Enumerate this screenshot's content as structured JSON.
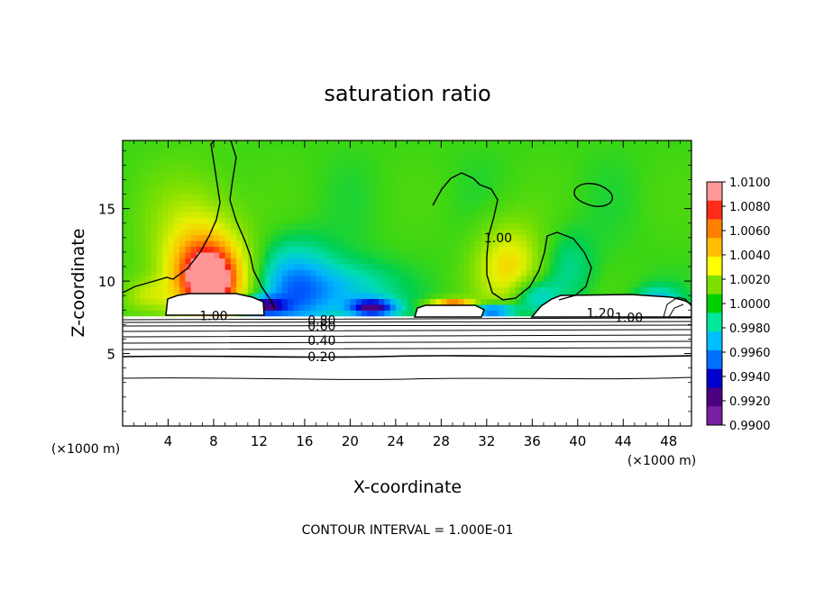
{
  "chart_data": {
    "type": "heatmap",
    "title": "saturation ratio",
    "xlabel": "X-coordinate",
    "ylabel": "Z-coordinate",
    "x_unit": "(×1000 m)",
    "z_unit": "(×1000 m)",
    "x_ticks": [
      4,
      8,
      12,
      16,
      20,
      24,
      28,
      32,
      36,
      40,
      44,
      48
    ],
    "x_tick_labels": [
      "4",
      "8",
      "12",
      "16",
      "20",
      "24",
      "28",
      "32",
      "36",
      "40",
      "44",
      "48"
    ],
    "y_ticks": [
      5,
      10,
      15
    ],
    "y_tick_labels": [
      "5",
      "10",
      "15"
    ],
    "xlim": [
      0,
      50
    ],
    "ylim": [
      0,
      19.7
    ],
    "footer": "CONTOUR INTERVAL = 1.000E-01",
    "colorbar": {
      "levels": [
        "1.0100",
        "1.0080",
        "1.0060",
        "1.0040",
        "1.0020",
        "1.0000",
        "0.9980",
        "0.9960",
        "0.9940",
        "0.9920",
        "0.9900"
      ],
      "colors": [
        "#ff9999",
        "#ff2a1a",
        "#ff7f00",
        "#ffbf00",
        "#ffff00",
        "#7fe000",
        "#00d000",
        "#00e89a",
        "#00bfff",
        "#0070ff",
        "#0000cc",
        "#4b0082",
        "#7a1fa2"
      ]
    },
    "contour_labels": [
      {
        "text": "1.00",
        "x": 8.0,
        "z": 7.6
      },
      {
        "text": "1.00",
        "x": 33.0,
        "z": 13.0
      },
      {
        "text": "1.20",
        "x": 42.0,
        "z": 7.8
      },
      {
        "text": "1.00",
        "x": 44.5,
        "z": 7.5
      },
      {
        "text": "0.80",
        "x": 17.5,
        "z": 7.3
      },
      {
        "text": "0.60",
        "x": 17.5,
        "z": 6.9
      },
      {
        "text": "0.40",
        "x": 17.5,
        "z": 5.9
      },
      {
        "text": "0.20",
        "x": 17.5,
        "z": 4.8
      }
    ],
    "blobs": [
      {
        "cx": 7.8,
        "cz": 10.0,
        "rx": 3.3,
        "rz": 2.8,
        "level": 0.98
      },
      {
        "cx": 6.5,
        "cz": 12.5,
        "rx": 4.0,
        "rz": 4.5,
        "level": 0.45
      },
      {
        "cx": 34.0,
        "cz": 11.0,
        "rx": 3.0,
        "rz": 3.0,
        "level": 0.55
      },
      {
        "cx": 12.0,
        "cz": 8.3,
        "rx": 2.0,
        "rz": 0.6,
        "level": -0.98
      },
      {
        "cx": 15.0,
        "cz": 9.5,
        "rx": 3.5,
        "rz": 3.0,
        "level": -0.55
      },
      {
        "cx": 22.0,
        "cz": 8.2,
        "rx": 2.0,
        "rz": 0.6,
        "level": -0.9
      },
      {
        "cx": 20.0,
        "cz": 9.3,
        "rx": 4.0,
        "rz": 2.0,
        "level": -0.35
      },
      {
        "cx": 32.5,
        "cz": 8.0,
        "rx": 2.0,
        "rz": 0.5,
        "level": -0.85
      },
      {
        "cx": 36.0,
        "cz": 9.0,
        "rx": 2.0,
        "rz": 1.2,
        "level": -0.4
      },
      {
        "cx": 39.0,
        "cz": 11.0,
        "rx": 2.5,
        "rz": 2.5,
        "level": -0.2
      },
      {
        "cx": 2.0,
        "cz": 9.0,
        "rx": 2.0,
        "rz": 1.2,
        "level": 0.3
      },
      {
        "cx": 29.0,
        "cz": 8.4,
        "rx": 2.0,
        "rz": 0.4,
        "level": 0.95
      },
      {
        "cx": 47.0,
        "cz": 8.6,
        "rx": 2.0,
        "rz": 1.0,
        "level": -0.4
      }
    ]
  }
}
